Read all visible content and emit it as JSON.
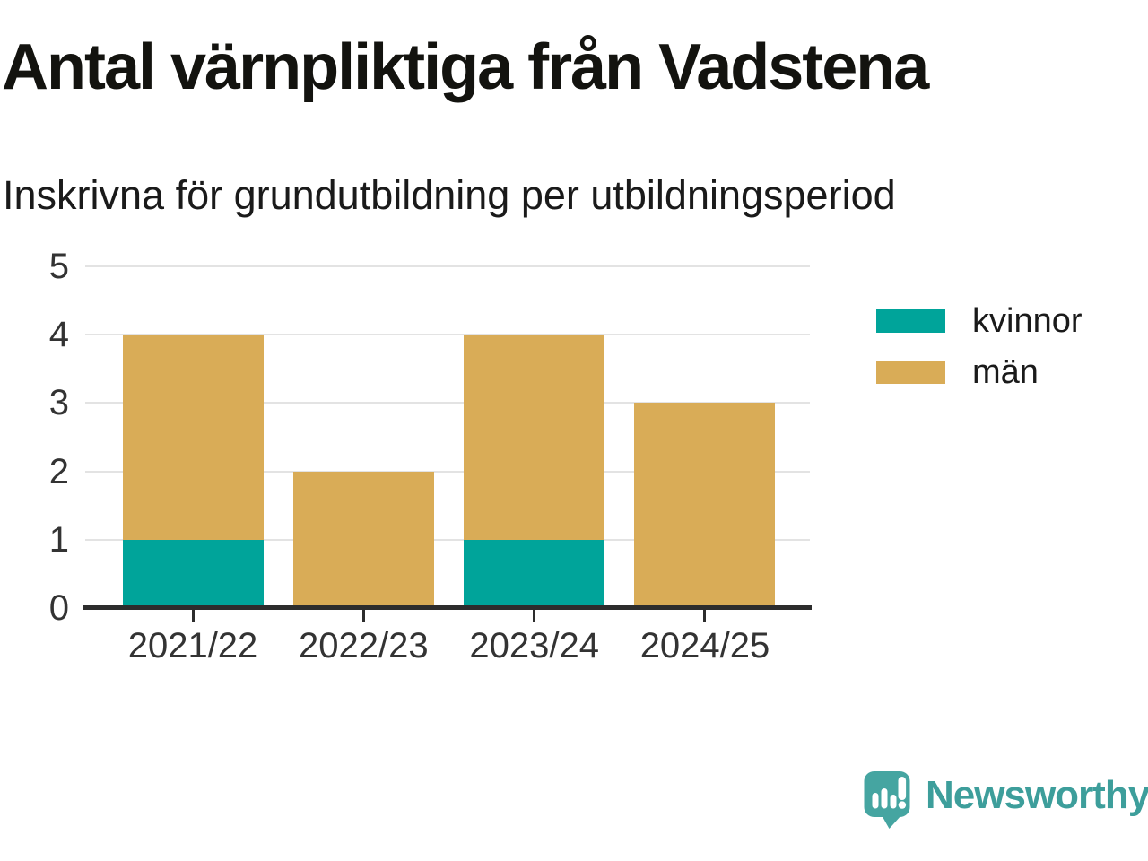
{
  "chart_data": {
    "type": "bar",
    "stacked": true,
    "title": "Antal värnpliktiga från Vadstena",
    "subtitle": "Inskrivna för grundutbildning per utbildningsperiod",
    "categories": [
      "2021/22",
      "2022/23",
      "2023/24",
      "2024/25"
    ],
    "series": [
      {
        "name": "kvinnor",
        "color": "#00A49A",
        "values": [
          1,
          0,
          1,
          0
        ]
      },
      {
        "name": "män",
        "color": "#D9AC57",
        "values": [
          3,
          2,
          3,
          3
        ]
      }
    ],
    "totals": [
      4,
      2,
      4,
      3
    ],
    "ylim": [
      0,
      5
    ],
    "yticks": [
      0,
      1,
      2,
      3,
      4,
      5
    ],
    "grid": true,
    "legend_position": "right",
    "colors": {
      "grid": "#E3E3E3",
      "axis": "#2D2D2D",
      "tick_label": "#333333"
    }
  },
  "branding": {
    "logo_text": "Newsworthy",
    "logo_color": "#3D9E9B",
    "logo_icon_color": "#45A5A1",
    "logo_icon": "speech-bubble-bar-chart-icon"
  }
}
